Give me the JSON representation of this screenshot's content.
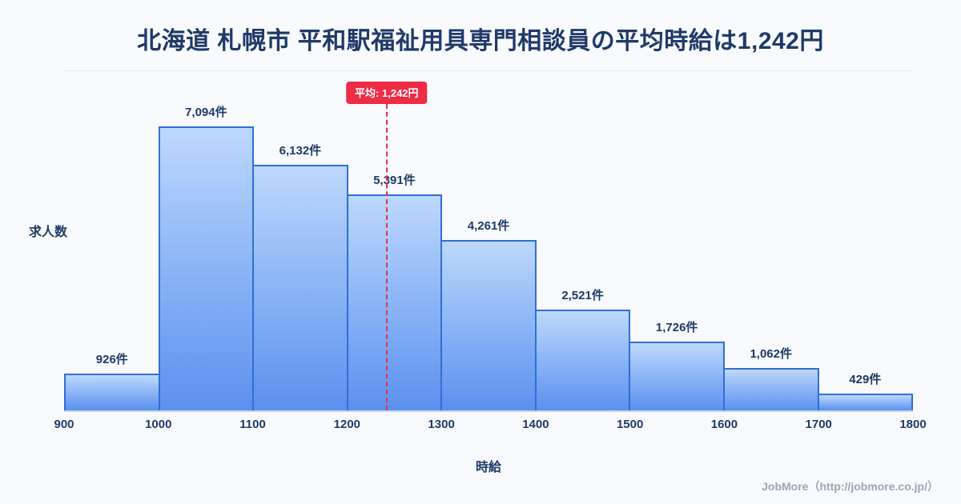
{
  "title": "北海道 札幌市 平和駅福祉用具専門相談員の平均時給は1,242円",
  "footer": {
    "credit": "JobMore（http://jobmore.co.jp/）"
  },
  "chart_data": {
    "type": "bar",
    "title": "北海道 札幌市 平和駅福祉用具専門相談員の平均時給は1,242円",
    "xlabel": "時給",
    "ylabel": "求人数",
    "x_ticks": [
      "900",
      "1000",
      "1100",
      "1200",
      "1300",
      "1400",
      "1500",
      "1600",
      "1700",
      "1800"
    ],
    "bin_edges": [
      900,
      1000,
      1100,
      1200,
      1300,
      1400,
      1500,
      1600,
      1700,
      1800
    ],
    "values": [
      926,
      7094,
      6132,
      5391,
      4261,
      2521,
      1726,
      1062,
      429
    ],
    "value_labels": [
      "926件",
      "7,094件",
      "6,132件",
      "5,391件",
      "4,261件",
      "2,521件",
      "1,726件",
      "1,062件",
      "429件"
    ],
    "x_range": [
      900,
      1800
    ],
    "average": 1242,
    "average_label": "平均: 1,242円",
    "legend": "none",
    "grid": false,
    "colors": {
      "bar_fill_top": "#bdd8fc",
      "bar_fill_bottom": "#5b90ee",
      "bar_border": "#2e6fd8",
      "average_line": "#e8304a",
      "average_badge_bg": "#ee2c44",
      "title_text": "#1f3a68",
      "background": "#f8fafd"
    }
  }
}
